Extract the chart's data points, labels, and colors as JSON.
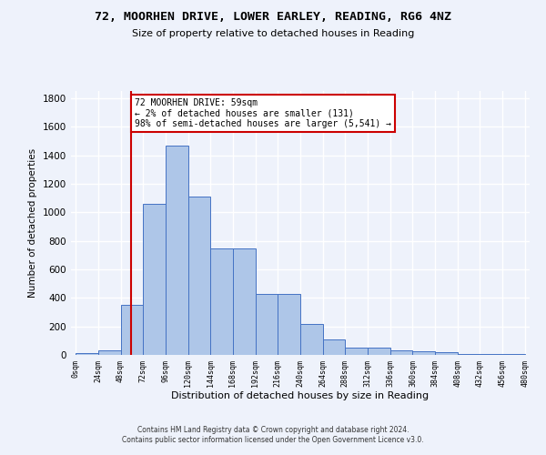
{
  "title": "72, MOORHEN DRIVE, LOWER EARLEY, READING, RG6 4NZ",
  "subtitle": "Size of property relative to detached houses in Reading",
  "xlabel": "Distribution of detached houses by size in Reading",
  "ylabel": "Number of detached properties",
  "footer_line1": "Contains HM Land Registry data © Crown copyright and database right 2024.",
  "footer_line2": "Contains public sector information licensed under the Open Government Licence v3.0.",
  "bin_edges": [
    0,
    24,
    48,
    72,
    96,
    120,
    144,
    168,
    192,
    216,
    240,
    264,
    288,
    312,
    336,
    360,
    384,
    408,
    432,
    456,
    480
  ],
  "bar_heights": [
    10,
    35,
    350,
    1060,
    1470,
    1110,
    745,
    745,
    430,
    430,
    220,
    110,
    50,
    50,
    35,
    25,
    20,
    5,
    5,
    5
  ],
  "bar_color": "#aec6e8",
  "bar_edge_color": "#4472c4",
  "property_size": 59,
  "vline_color": "#cc0000",
  "annotation_text": "72 MOORHEN DRIVE: 59sqm\n← 2% of detached houses are smaller (131)\n98% of semi-detached houses are larger (5,541) →",
  "annotation_box_color": "#ffffff",
  "annotation_box_edge_color": "#cc0000",
  "ylim": [
    0,
    1850
  ],
  "background_color": "#eef2fb",
  "grid_color": "#ffffff",
  "tick_labels": [
    "0sqm",
    "24sqm",
    "48sqm",
    "72sqm",
    "96sqm",
    "120sqm",
    "144sqm",
    "168sqm",
    "192sqm",
    "216sqm",
    "240sqm",
    "264sqm",
    "288sqm",
    "312sqm",
    "336sqm",
    "360sqm",
    "384sqm",
    "408sqm",
    "432sqm",
    "456sqm",
    "480sqm"
  ]
}
